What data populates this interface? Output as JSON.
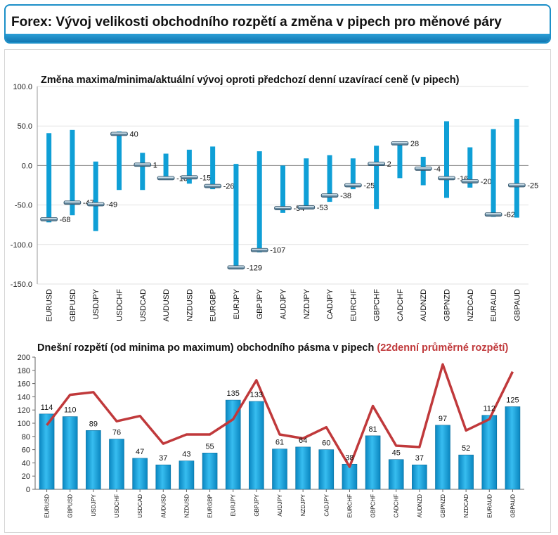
{
  "header": {
    "title": "Forex: Vývoj velikosti obchodního rozpětí a změna v pipech pro měnové páry"
  },
  "colors": {
    "accent": "#1b8fc8",
    "bar": "#0f9fd6",
    "line": "#c0393b",
    "title_red": "#c0393b"
  },
  "chart_data": [
    {
      "type": "bar",
      "title": "Změna maxima/minima/aktuální vývoj oproti předchozí denní uzavírací ceně (v pipech)",
      "xlabel": "",
      "ylabel": "",
      "ylim": [
        -150,
        100
      ],
      "yticks": [
        "100.0",
        "50.0",
        "0.0",
        "-50.0",
        "-100.0",
        "-150.0"
      ],
      "grid": true,
      "categories": [
        "EURUSD",
        "GBPUSD",
        "USDJPY",
        "USDCHF",
        "USDCAD",
        "AUDUSD",
        "NZDUSD",
        "EURGBP",
        "EURJPY",
        "GBPJPY",
        "AUDJPY",
        "NZDJPY",
        "CADJPY",
        "EURCHF",
        "GBPCHF",
        "CADCHF",
        "AUDNZD",
        "GBPNZD",
        "NZDCAD",
        "EURAUD",
        "GBPAUD"
      ],
      "series": [
        {
          "name": "max",
          "values": [
            41,
            45,
            5,
            43,
            16,
            15,
            20,
            24,
            2,
            18,
            0,
            9,
            13,
            9,
            25,
            29,
            11,
            56,
            23,
            46,
            59
          ]
        },
        {
          "name": "min",
          "values": [
            -72,
            -63,
            -83,
            -31,
            -31,
            -18,
            -23,
            -30,
            -131,
            -110,
            -60,
            -55,
            -46,
            -30,
            -55,
            -16,
            -25,
            -41,
            -28,
            -65,
            -66
          ]
        },
        {
          "name": "current",
          "values": [
            -68,
            -47,
            -49,
            40,
            1,
            -16,
            -15,
            -26,
            -129,
            -107,
            -54,
            -53,
            -38,
            -25,
            2,
            28,
            -4,
            -16,
            -20,
            -62,
            -25
          ]
        }
      ],
      "data_labels": [
        "-68",
        "-47",
        "-49",
        "40",
        "1",
        "-16",
        "-15",
        "-26",
        "-129",
        "-107",
        "-54",
        "-53",
        "-38",
        "-25",
        "2",
        "28",
        "-4",
        "-16",
        "-20",
        "-62",
        "-25"
      ]
    },
    {
      "type": "bar",
      "title": "Dnešní rozpětí (od minima po maximum) obchodního pásma v pipech",
      "subtitle": "(22denní průměrné rozpětí)",
      "xlabel": "",
      "ylabel": "",
      "ylim": [
        0,
        200
      ],
      "yticks": [
        "200",
        "180",
        "160",
        "140",
        "120",
        "100",
        "80",
        "60",
        "40",
        "20",
        "0"
      ],
      "grid": false,
      "categories": [
        "EURUSD",
        "GBPUSD",
        "USDJPY",
        "USDCHF",
        "USDCAD",
        "AUDUSD",
        "NZDUSD",
        "EURGBP",
        "EURJPY",
        "GBPJPY",
        "AUDJPY",
        "NZDJPY",
        "CADJPY",
        "EURCHF",
        "GBPCHF",
        "CADCHF",
        "AUDNZD",
        "GBPNZD",
        "NZDCAD",
        "EURAUD",
        "GBPAUD"
      ],
      "series": [
        {
          "name": "",
          "values": [
            114,
            110,
            89,
            76,
            47,
            37,
            43,
            55,
            135,
            133,
            61,
            64,
            60,
            38,
            81,
            45,
            37,
            97,
            52,
            112,
            125
          ]
        },
        {
          "name": "",
          "type": "line",
          "values": [
            97,
            143,
            147,
            103,
            111,
            69,
            83,
            83,
            106,
            165,
            83,
            77,
            94,
            34,
            126,
            66,
            64,
            189,
            89,
            106,
            178
          ]
        }
      ],
      "data_labels": [
        "114",
        "110",
        "89",
        "76",
        "47",
        "37",
        "43",
        "55",
        "135",
        "133",
        "61",
        "64",
        "60",
        "38",
        "81",
        "45",
        "37",
        "97",
        "52",
        "112",
        "125"
      ]
    }
  ]
}
